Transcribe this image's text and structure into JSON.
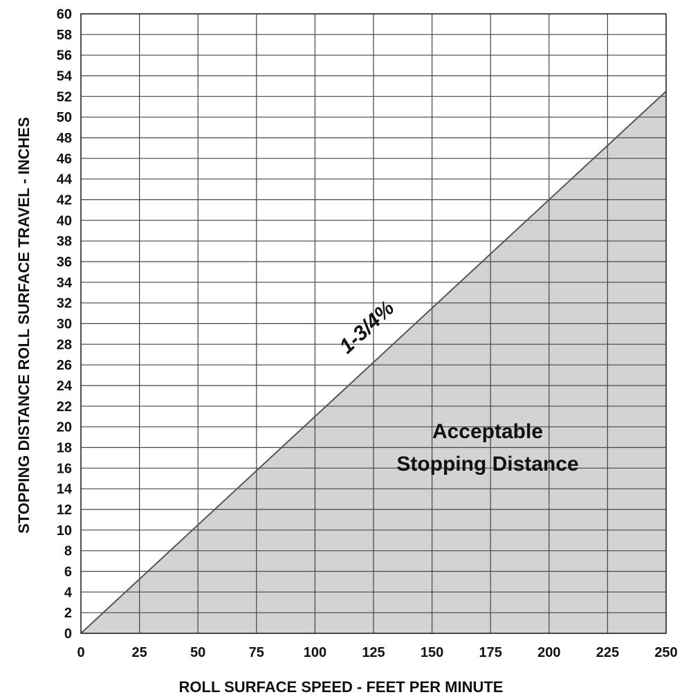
{
  "chart_data": {
    "type": "area",
    "xlabel": "ROLL SURFACE SPEED - FEET PER MINUTE",
    "ylabel": "STOPPING DISTANCE ROLL SURFACE TRAVEL - INCHES",
    "xlim": [
      0,
      250
    ],
    "ylim": [
      0,
      60
    ],
    "x_ticks": [
      0,
      25,
      50,
      75,
      100,
      125,
      150,
      175,
      200,
      225,
      250
    ],
    "y_ticks": [
      0,
      2,
      4,
      6,
      8,
      10,
      12,
      14,
      16,
      18,
      20,
      22,
      24,
      26,
      28,
      30,
      32,
      34,
      36,
      38,
      40,
      42,
      44,
      46,
      48,
      50,
      52,
      54,
      56,
      58,
      60
    ],
    "grid": true,
    "series": [
      {
        "name": "1-3/4%",
        "x": [
          0,
          250
        ],
        "y": [
          0,
          52.5
        ]
      }
    ],
    "fill_color": "#d3d3d3",
    "line_color": "#555555",
    "annotations": [
      {
        "text_lines": [
          "Acceptable",
          "Stopping Distance"
        ],
        "x": 173,
        "y": 18.6
      },
      {
        "text": "1-3/4%",
        "x": 121,
        "y": 29
      }
    ]
  }
}
